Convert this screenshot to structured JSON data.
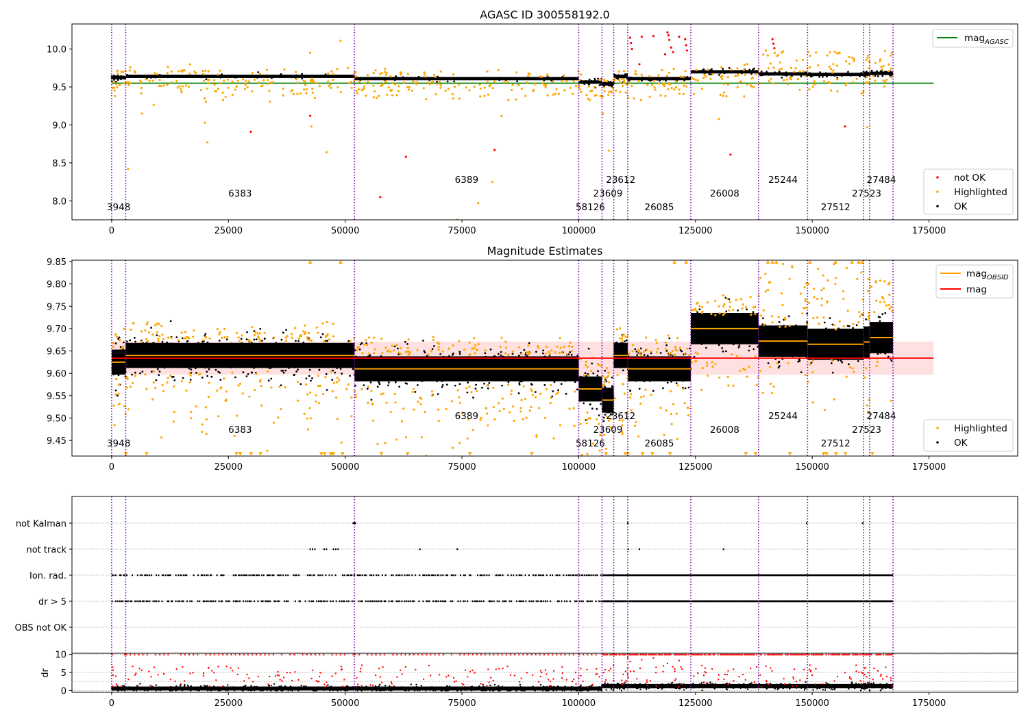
{
  "chart_data": [
    {
      "type": "scatter",
      "title": "AGASC ID 300558192.0",
      "xlabel": "",
      "ylabel": "",
      "xlim": [
        -8500,
        194000
      ],
      "ylim": [
        7.75,
        10.33
      ],
      "x_ticks": [
        0,
        25000,
        50000,
        75000,
        100000,
        125000,
        150000,
        175000
      ],
      "y_ticks": [
        8.0,
        8.5,
        9.0,
        9.5,
        10.0
      ],
      "legend_top": {
        "position": "top-right",
        "entries": [
          {
            "label": "mag",
            "sub": "AGASC",
            "color": "#008000"
          }
        ]
      },
      "legend_bottom": {
        "position": "lower-right",
        "entries": [
          {
            "label": "not OK",
            "color": "#ff0000"
          },
          {
            "label": "Highlighted",
            "color": "#ffa500"
          },
          {
            "label": "OK",
            "color": "#000000"
          }
        ]
      },
      "agasc_mag": {
        "value": 9.55,
        "x_range": [
          0,
          176000
        ],
        "color": "#008000"
      },
      "observations": [
        {
          "obsid": "3948",
          "start": 0,
          "end": 3000,
          "mag": 9.625
        },
        {
          "obsid": "6383",
          "start": 3000,
          "end": 52000,
          "mag": 9.64
        },
        {
          "obsid": "6389",
          "start": 52000,
          "end": 100000,
          "mag": 9.61
        },
        {
          "obsid": "58126",
          "start": 100000,
          "end": 105000,
          "mag": 9.565
        },
        {
          "obsid": "23609",
          "start": 105000,
          "end": 107500,
          "mag": 9.54
        },
        {
          "obsid": "23612",
          "start": 107500,
          "end": 110500,
          "mag": 9.64
        },
        {
          "obsid": "26085",
          "start": 110500,
          "end": 124000,
          "mag": 9.61
        },
        {
          "obsid": "26008",
          "start": 124000,
          "end": 138500,
          "mag": 9.7
        },
        {
          "obsid": "25244",
          "start": 138500,
          "end": 149000,
          "mag": 9.672
        },
        {
          "obsid": "27512",
          "start": 149000,
          "end": 161000,
          "mag": 9.665
        },
        {
          "obsid": "27523",
          "start": 161000,
          "end": 162300,
          "mag": 9.67
        },
        {
          "obsid": "27484",
          "start": 162300,
          "end": 167300,
          "mag": 9.68
        }
      ],
      "vlines_x": [
        0,
        3000,
        52000,
        100000,
        105000,
        107500,
        110500,
        124000,
        138500,
        149000,
        161000,
        162300,
        167300
      ]
    },
    {
      "type": "scatter",
      "title": "Magnitude Estimates",
      "xlabel": "",
      "ylabel": "",
      "xlim": [
        -8500,
        194000
      ],
      "ylim": [
        9.415,
        9.853
      ],
      "x_ticks": [
        0,
        25000,
        50000,
        75000,
        100000,
        125000,
        150000,
        175000
      ],
      "y_ticks": [
        9.45,
        9.5,
        9.55,
        9.6,
        9.65,
        9.7,
        9.75,
        9.8,
        9.85
      ],
      "legend_top": {
        "position": "top-right",
        "entries": [
          {
            "label": "mag",
            "sub": "OBSID",
            "color": "#ffa500"
          },
          {
            "label": "mag",
            "sub": "",
            "color": "#ff0000"
          }
        ]
      },
      "legend_bottom": {
        "position": "lower-right",
        "entries": [
          {
            "label": "Highlighted",
            "color": "#ffa500"
          },
          {
            "label": "OK",
            "color": "#000000"
          }
        ]
      },
      "mag": {
        "value": 9.634,
        "band": [
          9.597,
          9.671
        ],
        "x_range": [
          0,
          176000
        ],
        "color": "#ff0000"
      }
    },
    {
      "type": "scatter",
      "title": "",
      "xlabel": "",
      "ylabel": "",
      "xlim": [
        -8500,
        194000
      ],
      "x_ticks": [
        0,
        25000,
        50000,
        75000,
        100000,
        125000,
        150000,
        175000
      ],
      "flag_categories": [
        "not Kalman",
        "not track",
        "Ion. rad.",
        "dr > 5",
        "OBS not OK"
      ]
    },
    {
      "type": "scatter",
      "title": "",
      "xlabel": "",
      "ylabel": "dr",
      "xlim": [
        -8500,
        194000
      ],
      "ylim": [
        -0.5,
        10.3
      ],
      "x_ticks": [
        0,
        25000,
        50000,
        75000,
        100000,
        125000,
        150000,
        175000
      ],
      "y_ticks": [
        0,
        5,
        10
      ]
    }
  ]
}
